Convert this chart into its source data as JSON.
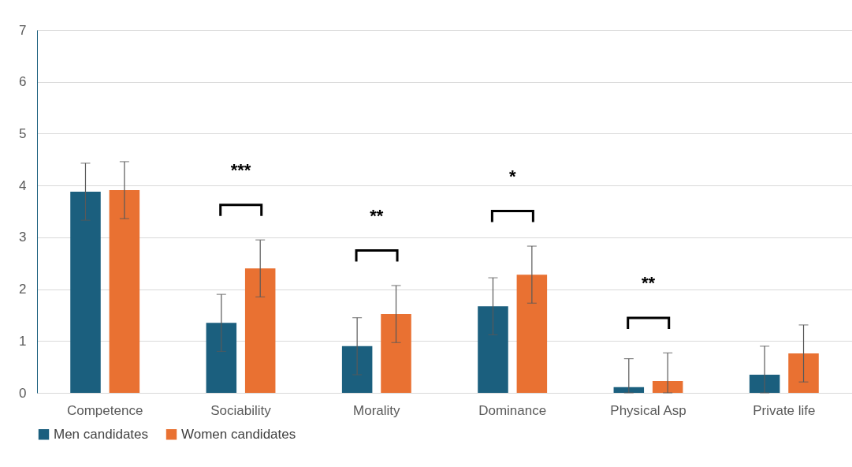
{
  "chart_data": {
    "type": "bar",
    "categories": [
      "Competence",
      "Sociability",
      "Morality",
      "Dominance",
      "Physical Asp",
      "Private life"
    ],
    "series": [
      {
        "name": "Men candidates",
        "color": "#1b5f7e",
        "values": [
          3.88,
          1.35,
          0.9,
          1.67,
          0.11,
          0.35
        ],
        "errors": [
          0.55,
          0.55,
          0.55,
          0.55,
          [
            0,
            0.66
          ],
          [
            0,
            0.9
          ]
        ]
      },
      {
        "name": "Women candidates",
        "color": "#e97132",
        "values": [
          3.91,
          2.4,
          1.52,
          2.28,
          0.23,
          0.76
        ],
        "errors": [
          0.55,
          0.55,
          0.55,
          0.55,
          [
            0,
            0.77
          ],
          0.55
        ]
      }
    ],
    "ylim": [
      0,
      7
    ],
    "yticks": [
      0,
      1,
      2,
      3,
      4,
      5,
      6,
      7
    ],
    "grid": "y",
    "legend": "bottom",
    "annotations": [
      "***",
      "**",
      "*",
      "**"
    ]
  }
}
